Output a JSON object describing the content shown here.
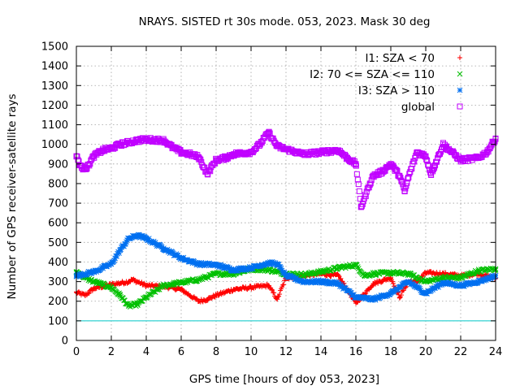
{
  "chart_data": {
    "type": "scatter",
    "title": "NRAYS. SISTED rt 30s mode. 053, 2023. Mask 30 deg",
    "xlabel": "GPS time [hours of doy 053, 2023]",
    "ylabel": "Number of GPS receiver-satellite rays",
    "xlim": [
      0,
      24
    ],
    "ylim": [
      0,
      1500
    ],
    "xticks": [
      "0",
      "2",
      "4",
      "6",
      "8",
      "10",
      "12",
      "14",
      "16",
      "18",
      "20",
      "22",
      "24"
    ],
    "yticks": [
      "0",
      "100",
      "200",
      "300",
      "400",
      "500",
      "600",
      "700",
      "800",
      "900",
      "1000",
      "1100",
      "1200",
      "1300",
      "1400",
      "1500"
    ],
    "grid": true,
    "legend_position": "top-right",
    "reference_line": {
      "y": 100,
      "color": "#00c8c8"
    },
    "series": [
      {
        "name": "I1: SZA < 70",
        "marker": "plus",
        "color": "#ff0000",
        "x": [
          0,
          0.5,
          1,
          2,
          3,
          3.2,
          4,
          5,
          6,
          7,
          7.5,
          8,
          9,
          10,
          11,
          11.5,
          12,
          13,
          14,
          15,
          16,
          17,
          18,
          18.5,
          19,
          19.5,
          20,
          21,
          22,
          23,
          24
        ],
        "y": [
          245,
          230,
          265,
          285,
          300,
          310,
          280,
          275,
          260,
          200,
          210,
          230,
          260,
          270,
          280,
          210,
          320,
          330,
          340,
          330,
          190,
          290,
          320,
          220,
          300,
          300,
          345,
          340,
          330,
          340,
          315
        ]
      },
      {
        "name": "I2: 70 <= SZA <= 110",
        "marker": "x",
        "color": "#00c000",
        "x": [
          0,
          0.5,
          1,
          2,
          2.5,
          3,
          3.5,
          4,
          5,
          6,
          7,
          8,
          9,
          10,
          11,
          12,
          13,
          14,
          15,
          16,
          16.5,
          17,
          18,
          19,
          20,
          21,
          22,
          23,
          24
        ],
        "y": [
          350,
          320,
          300,
          270,
          230,
          175,
          185,
          220,
          280,
          295,
          310,
          340,
          340,
          365,
          360,
          340,
          335,
          350,
          370,
          385,
          330,
          340,
          345,
          340,
          300,
          320,
          320,
          355,
          365
        ]
      },
      {
        "name": "I3: SZA > 110",
        "marker": "star",
        "color": "#0070f0",
        "x": [
          0,
          1,
          2,
          2.5,
          3,
          3.5,
          4,
          5,
          6,
          7,
          8,
          9,
          10,
          11,
          11.5,
          12,
          13,
          14,
          15,
          16,
          17,
          18,
          19,
          20,
          21,
          22,
          23,
          24
        ],
        "y": [
          330,
          350,
          390,
          460,
          520,
          535,
          520,
          470,
          420,
          390,
          385,
          360,
          370,
          395,
          390,
          330,
          300,
          300,
          290,
          220,
          210,
          240,
          300,
          240,
          295,
          280,
          300,
          330
        ]
      },
      {
        "name": "global",
        "marker": "open-square",
        "color": "#c000ff",
        "x": [
          0,
          0.3,
          0.6,
          1,
          1.5,
          2,
          2.5,
          3,
          3.5,
          4,
          5,
          5.5,
          6,
          6.5,
          7,
          7.5,
          8,
          8.5,
          9,
          10,
          10.5,
          11,
          11.5,
          12,
          13,
          14,
          15,
          15.5,
          16,
          16.3,
          16.8,
          17,
          17.5,
          18,
          18.5,
          18.8,
          19,
          19.5,
          20,
          20.3,
          20.5,
          21,
          21.5,
          22,
          23,
          23.5,
          24
        ],
        "y": [
          940,
          880,
          880,
          940,
          970,
          980,
          1000,
          1010,
          1020,
          1025,
          1020,
          985,
          960,
          950,
          935,
          850,
          920,
          930,
          950,
          960,
          1000,
          1060,
          990,
          975,
          950,
          960,
          970,
          930,
          900,
          680,
          800,
          840,
          860,
          900,
          840,
          760,
          830,
          960,
          940,
          850,
          890,
          1000,
          960,
          920,
          930,
          960,
          1030
        ]
      }
    ]
  }
}
